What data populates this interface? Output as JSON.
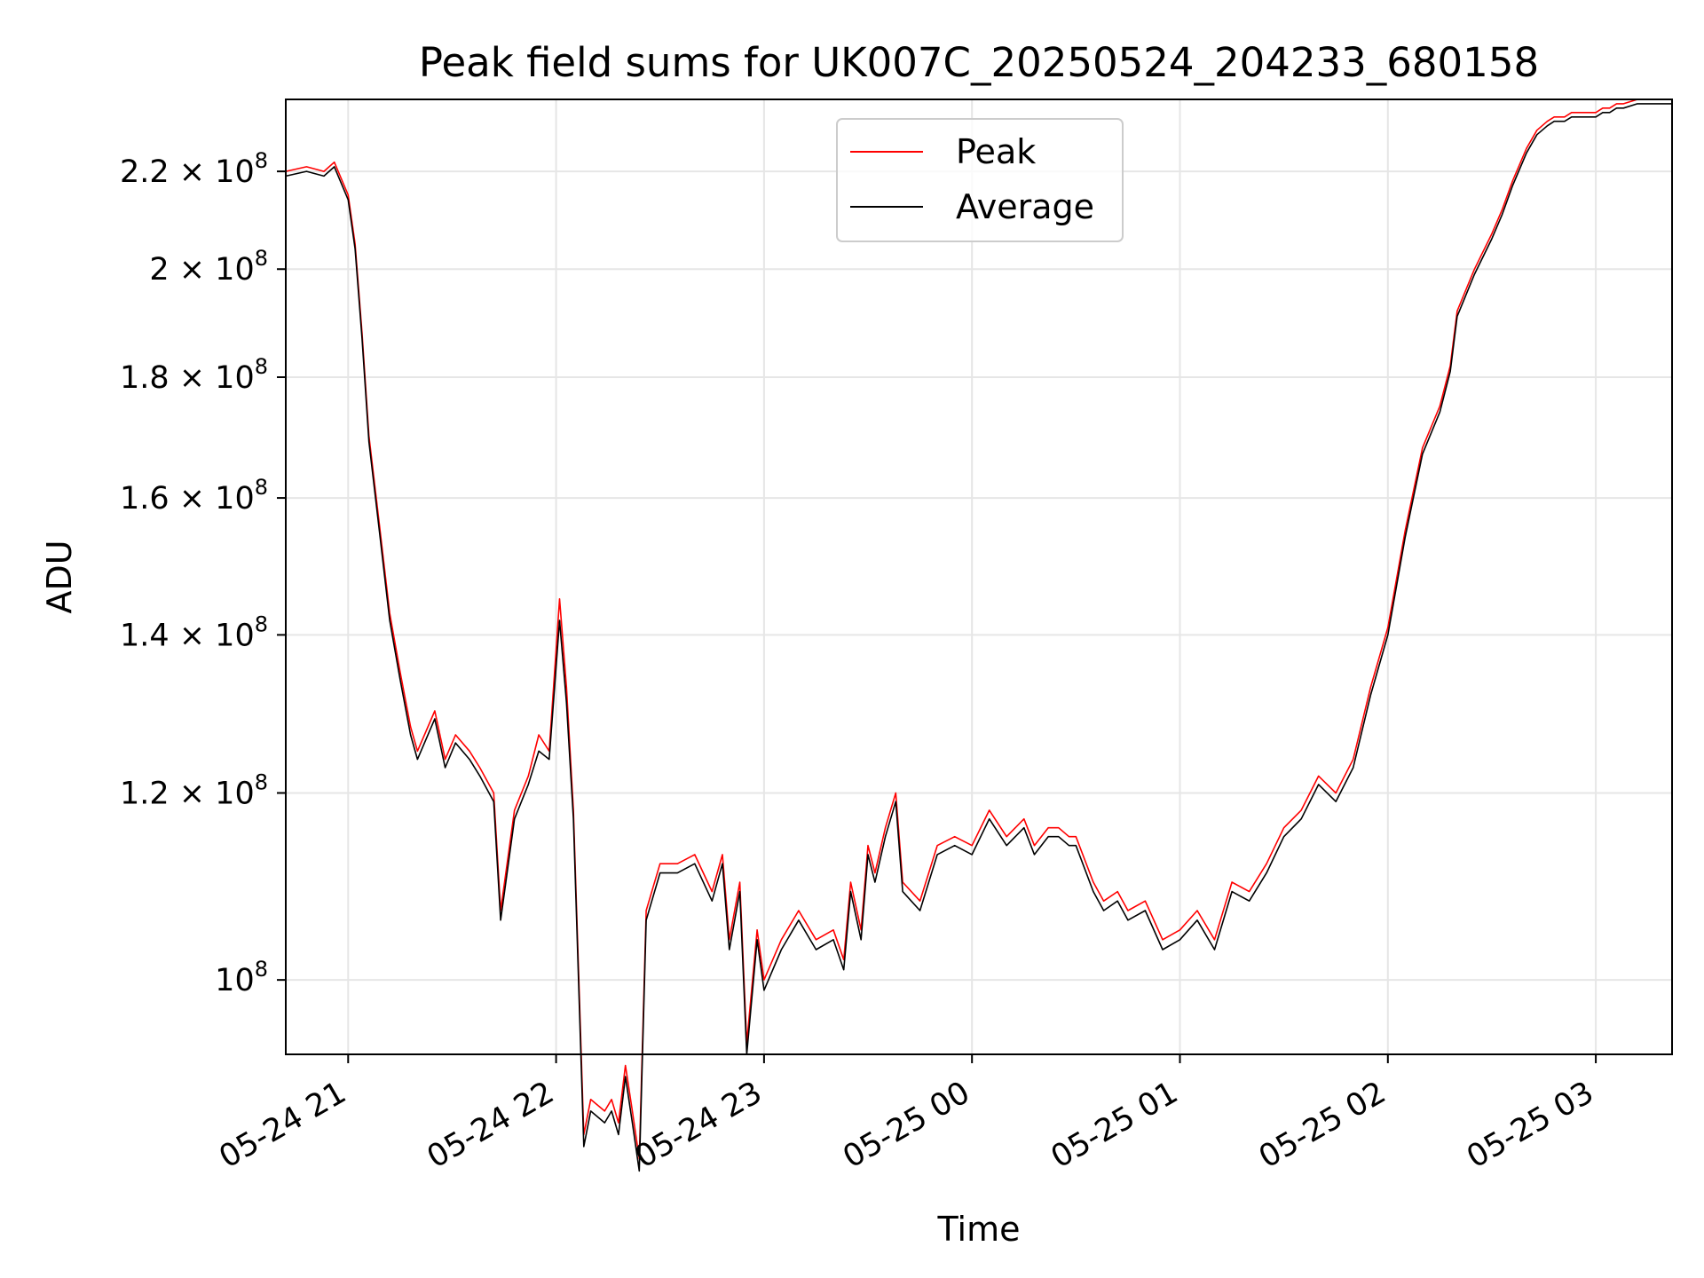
{
  "chart_data": {
    "type": "line",
    "title": "Peak field sums for UK007C_20250524_204233_680158",
    "xlabel": "Time",
    "ylabel": "ADU",
    "yscale": "log",
    "grid": true,
    "legend_position": "top-center",
    "x_range": [
      "2025-05-24 20:42",
      "2025-05-25 03:22"
    ],
    "ylim": [
      93000000,
      236000000
    ],
    "x_ticks": [
      "05-24 21",
      "05-24 22",
      "05-24 23",
      "05-25 00",
      "05-25 01",
      "05-25 02",
      "05-25 03"
    ],
    "y_ticks": [
      {
        "value": 100000000,
        "label": "10^8",
        "mantissa": "",
        "base": "10",
        "exp": "8"
      },
      {
        "value": 120000000,
        "label": "1.2 × 10^8",
        "mantissa": "1.2 × ",
        "base": "10",
        "exp": "8"
      },
      {
        "value": 140000000,
        "label": "1.4 × 10^8",
        "mantissa": "1.4 × ",
        "base": "10",
        "exp": "8"
      },
      {
        "value": 160000000,
        "label": "1.6 × 10^8",
        "mantissa": "1.6 × ",
        "base": "10",
        "exp": "8"
      },
      {
        "value": 180000000,
        "label": "1.8 × 10^8",
        "mantissa": "1.8 × ",
        "base": "10",
        "exp": "8"
      },
      {
        "value": 200000000,
        "label": "2 × 10^8",
        "mantissa": "2 × ",
        "base": "10",
        "exp": "8"
      },
      {
        "value": 220000000,
        "label": "2.2 × 10^8",
        "mantissa": "2.2 × ",
        "base": "10",
        "exp": "8"
      }
    ],
    "x": [
      "2025-05-24 20:42",
      "2025-05-24 20:48",
      "2025-05-24 20:53",
      "2025-05-24 20:56",
      "2025-05-24 21:00",
      "2025-05-24 21:02",
      "2025-05-24 21:04",
      "2025-05-24 21:06",
      "2025-05-24 21:09",
      "2025-05-24 21:12",
      "2025-05-24 21:15",
      "2025-05-24 21:18",
      "2025-05-24 21:20",
      "2025-05-24 21:25",
      "2025-05-24 21:28",
      "2025-05-24 21:31",
      "2025-05-24 21:35",
      "2025-05-24 21:38",
      "2025-05-24 21:42",
      "2025-05-24 21:44",
      "2025-05-24 21:48",
      "2025-05-24 21:52",
      "2025-05-24 21:55",
      "2025-05-24 21:58",
      "2025-05-24 22:01",
      "2025-05-24 22:03",
      "2025-05-24 22:05",
      "2025-05-24 22:08",
      "2025-05-24 22:10",
      "2025-05-24 22:14",
      "2025-05-24 22:16",
      "2025-05-24 22:18",
      "2025-05-24 22:20",
      "2025-05-24 22:22",
      "2025-05-24 22:24",
      "2025-05-24 22:26",
      "2025-05-24 22:30",
      "2025-05-24 22:35",
      "2025-05-24 22:40",
      "2025-05-24 22:45",
      "2025-05-24 22:48",
      "2025-05-24 22:50",
      "2025-05-24 22:53",
      "2025-05-24 22:55",
      "2025-05-24 22:58",
      "2025-05-24 23:00",
      "2025-05-24 23:05",
      "2025-05-24 23:10",
      "2025-05-24 23:15",
      "2025-05-24 23:20",
      "2025-05-24 23:23",
      "2025-05-24 23:25",
      "2025-05-24 23:28",
      "2025-05-24 23:30",
      "2025-05-24 23:32",
      "2025-05-24 23:35",
      "2025-05-24 23:38",
      "2025-05-24 23:40",
      "2025-05-24 23:45",
      "2025-05-24 23:50",
      "2025-05-24 23:55",
      "2025-05-25 00:00",
      "2025-05-25 00:05",
      "2025-05-25 00:10",
      "2025-05-25 00:15",
      "2025-05-25 00:18",
      "2025-05-25 00:22",
      "2025-05-25 00:25",
      "2025-05-25 00:28",
      "2025-05-25 00:30",
      "2025-05-25 00:35",
      "2025-05-25 00:38",
      "2025-05-25 00:42",
      "2025-05-25 00:45",
      "2025-05-25 00:50",
      "2025-05-25 00:55",
      "2025-05-25 01:00",
      "2025-05-25 01:05",
      "2025-05-25 01:10",
      "2025-05-25 01:15",
      "2025-05-25 01:20",
      "2025-05-25 01:25",
      "2025-05-25 01:30",
      "2025-05-25 01:35",
      "2025-05-25 01:40",
      "2025-05-25 01:45",
      "2025-05-25 01:50",
      "2025-05-25 01:55",
      "2025-05-25 02:00",
      "2025-05-25 02:05",
      "2025-05-25 02:10",
      "2025-05-25 02:15",
      "2025-05-25 02:18",
      "2025-05-25 02:20",
      "2025-05-25 02:25",
      "2025-05-25 02:30",
      "2025-05-25 02:33",
      "2025-05-25 02:36",
      "2025-05-25 02:40",
      "2025-05-25 02:43",
      "2025-05-25 02:46",
      "2025-05-25 02:48",
      "2025-05-25 02:51",
      "2025-05-25 02:53",
      "2025-05-25 02:55",
      "2025-05-25 02:57",
      "2025-05-25 02:59",
      "2025-05-25 03:00",
      "2025-05-25 03:02",
      "2025-05-25 03:04",
      "2025-05-25 03:06",
      "2025-05-25 03:08",
      "2025-05-25 03:12",
      "2025-05-25 03:16",
      "2025-05-25 03:22"
    ],
    "series": [
      {
        "name": "Peak",
        "color": "#ff0000",
        "values": [
          220,
          221,
          220,
          222,
          215,
          205,
          188,
          170,
          156,
          143,
          135,
          128,
          125,
          130,
          124,
          127,
          125,
          123,
          120,
          107,
          118,
          122,
          127,
          125,
          145,
          133,
          118,
          86,
          89,
          88,
          89,
          87,
          92,
          88,
          84,
          107,
          112,
          112,
          113,
          109,
          113,
          104,
          110,
          94,
          105,
          100,
          104,
          107,
          104,
          105,
          102,
          110,
          105,
          114,
          111,
          116,
          120,
          110,
          108,
          114,
          115,
          114,
          118,
          115,
          117,
          114,
          116,
          116,
          115,
          115,
          110,
          108,
          109,
          107,
          108,
          104,
          105,
          107,
          104,
          110,
          109,
          112,
          116,
          118,
          122,
          120,
          124,
          133,
          141,
          155,
          168,
          175,
          182,
          192,
          200,
          207,
          212,
          218,
          225,
          229,
          231,
          232,
          232,
          233,
          233,
          233,
          233,
          233,
          234,
          234,
          235,
          235,
          236,
          236,
          236
        ]
      },
      {
        "name": "Average",
        "color": "#000000",
        "values": [
          219,
          220,
          219,
          221,
          214,
          204,
          187,
          169,
          155,
          142,
          134,
          127,
          124,
          129,
          123,
          126,
          124,
          122,
          119,
          106,
          117,
          121,
          125,
          124,
          142,
          131,
          117,
          85,
          88,
          87,
          88,
          86,
          91,
          87,
          83,
          106,
          111,
          111,
          112,
          108,
          112,
          103,
          109,
          93,
          104,
          99,
          103,
          106,
          103,
          104,
          101,
          109,
          104,
          113,
          110,
          115,
          119,
          109,
          107,
          113,
          114,
          113,
          117,
          114,
          116,
          113,
          115,
          115,
          114,
          114,
          109,
          107,
          108,
          106,
          107,
          103,
          104,
          106,
          103,
          109,
          108,
          111,
          115,
          117,
          121,
          119,
          123,
          132,
          140,
          154,
          167,
          174,
          181,
          191,
          199,
          206,
          211,
          217,
          224,
          228,
          230,
          231,
          231,
          232,
          232,
          232,
          232,
          232,
          233,
          233,
          234,
          234,
          235,
          235,
          235
        ]
      }
    ]
  }
}
